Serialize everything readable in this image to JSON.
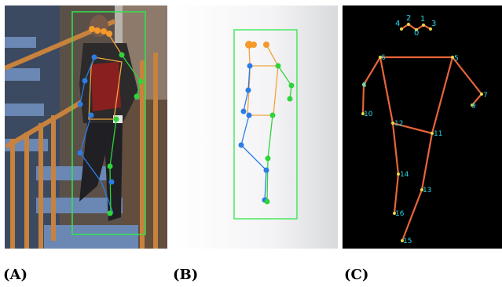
{
  "figure": {
    "captions": [
      "(A)",
      "(B)",
      "(C)"
    ]
  },
  "colors": {
    "bbox": "#2ee84a",
    "torso": "#f2a340",
    "left_limbs": "#2b7de6",
    "right_limbs": "#2fd43b",
    "head": "#f59a2a",
    "skeleton_c": "#e8643a",
    "keypoint_c": "#e8d84a",
    "label_c": "#27d7e8"
  },
  "panel_c": {
    "labels": [
      "0",
      "1",
      "2",
      "3",
      "4",
      "5",
      "6",
      "7",
      "8",
      "9",
      "10",
      "11",
      "12",
      "13",
      "14",
      "15",
      "16"
    ]
  }
}
